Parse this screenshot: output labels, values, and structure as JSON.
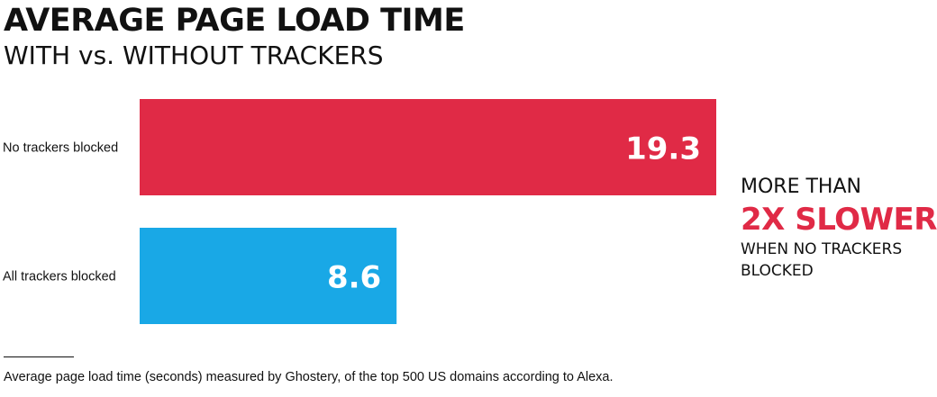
{
  "chart_data": {
    "type": "bar",
    "orientation": "horizontal",
    "title": "AVERAGE PAGE LOAD TIME",
    "subtitle": "WITH vs. WITHOUT TRACKERS",
    "categories": [
      "No trackers blocked",
      "All trackers blocked"
    ],
    "values": [
      19.3,
      8.6
    ],
    "value_labels": [
      "19.3",
      "8.6"
    ],
    "colors": [
      "#e02a46",
      "#19a8e6"
    ],
    "xlim": [
      0,
      19.3
    ],
    "grid": false,
    "legend": "none"
  },
  "callout": {
    "line1": "MORE THAN",
    "line2": "2X SLOWER",
    "line3": "WHEN NO TRACKERS BLOCKED"
  },
  "footnote": "Average page load time (seconds) measured by Ghostery, of the top 500 US domains according to Alexa."
}
